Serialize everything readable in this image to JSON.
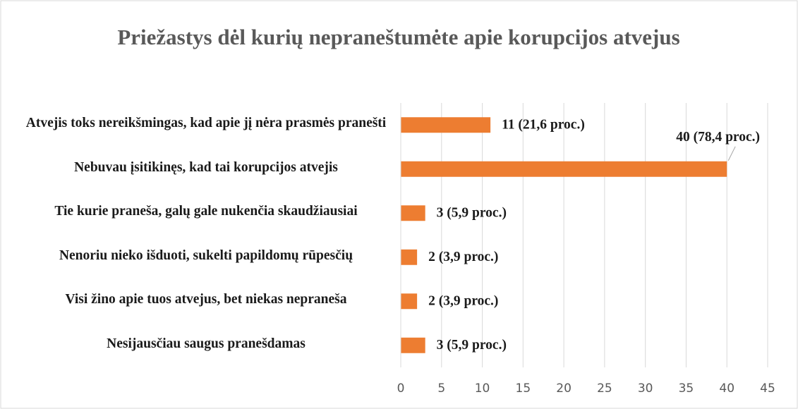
{
  "chart_data": {
    "type": "bar",
    "orientation": "horizontal",
    "title": "Priežastys dėl kurių nepraneštumėte apie korupcijos atvejus",
    "categories": [
      "Atvejis toks nereikšmingas, kad apie jį nėra prasmės pranešti",
      "Nebuvau įsitikinęs, kad tai korupcijos atvejis",
      "Tie kurie praneša, galų gale nukenčia skaudžiausiai",
      "Nenoriu nieko išduoti, sukelti papildomų rūpesčių",
      "Visi žino apie tuos atvejus, bet niekas nepraneša",
      "Nesijausčiau saugus pranešdamas"
    ],
    "values": [
      11,
      40,
      3,
      2,
      2,
      3
    ],
    "value_labels": [
      "11 (21,6 proc.)",
      "40 (78,4 proc.)",
      "3 (5,9 proc.)",
      "2 (3,9 proc.)",
      "2 (3,9 proc.)",
      "3 (5,9 proc.)"
    ],
    "color": "#ed7d31",
    "xlim": [
      0,
      45
    ],
    "xticks": [
      0,
      5,
      10,
      15,
      20,
      25,
      30,
      35,
      40,
      45
    ],
    "grid": true
  }
}
